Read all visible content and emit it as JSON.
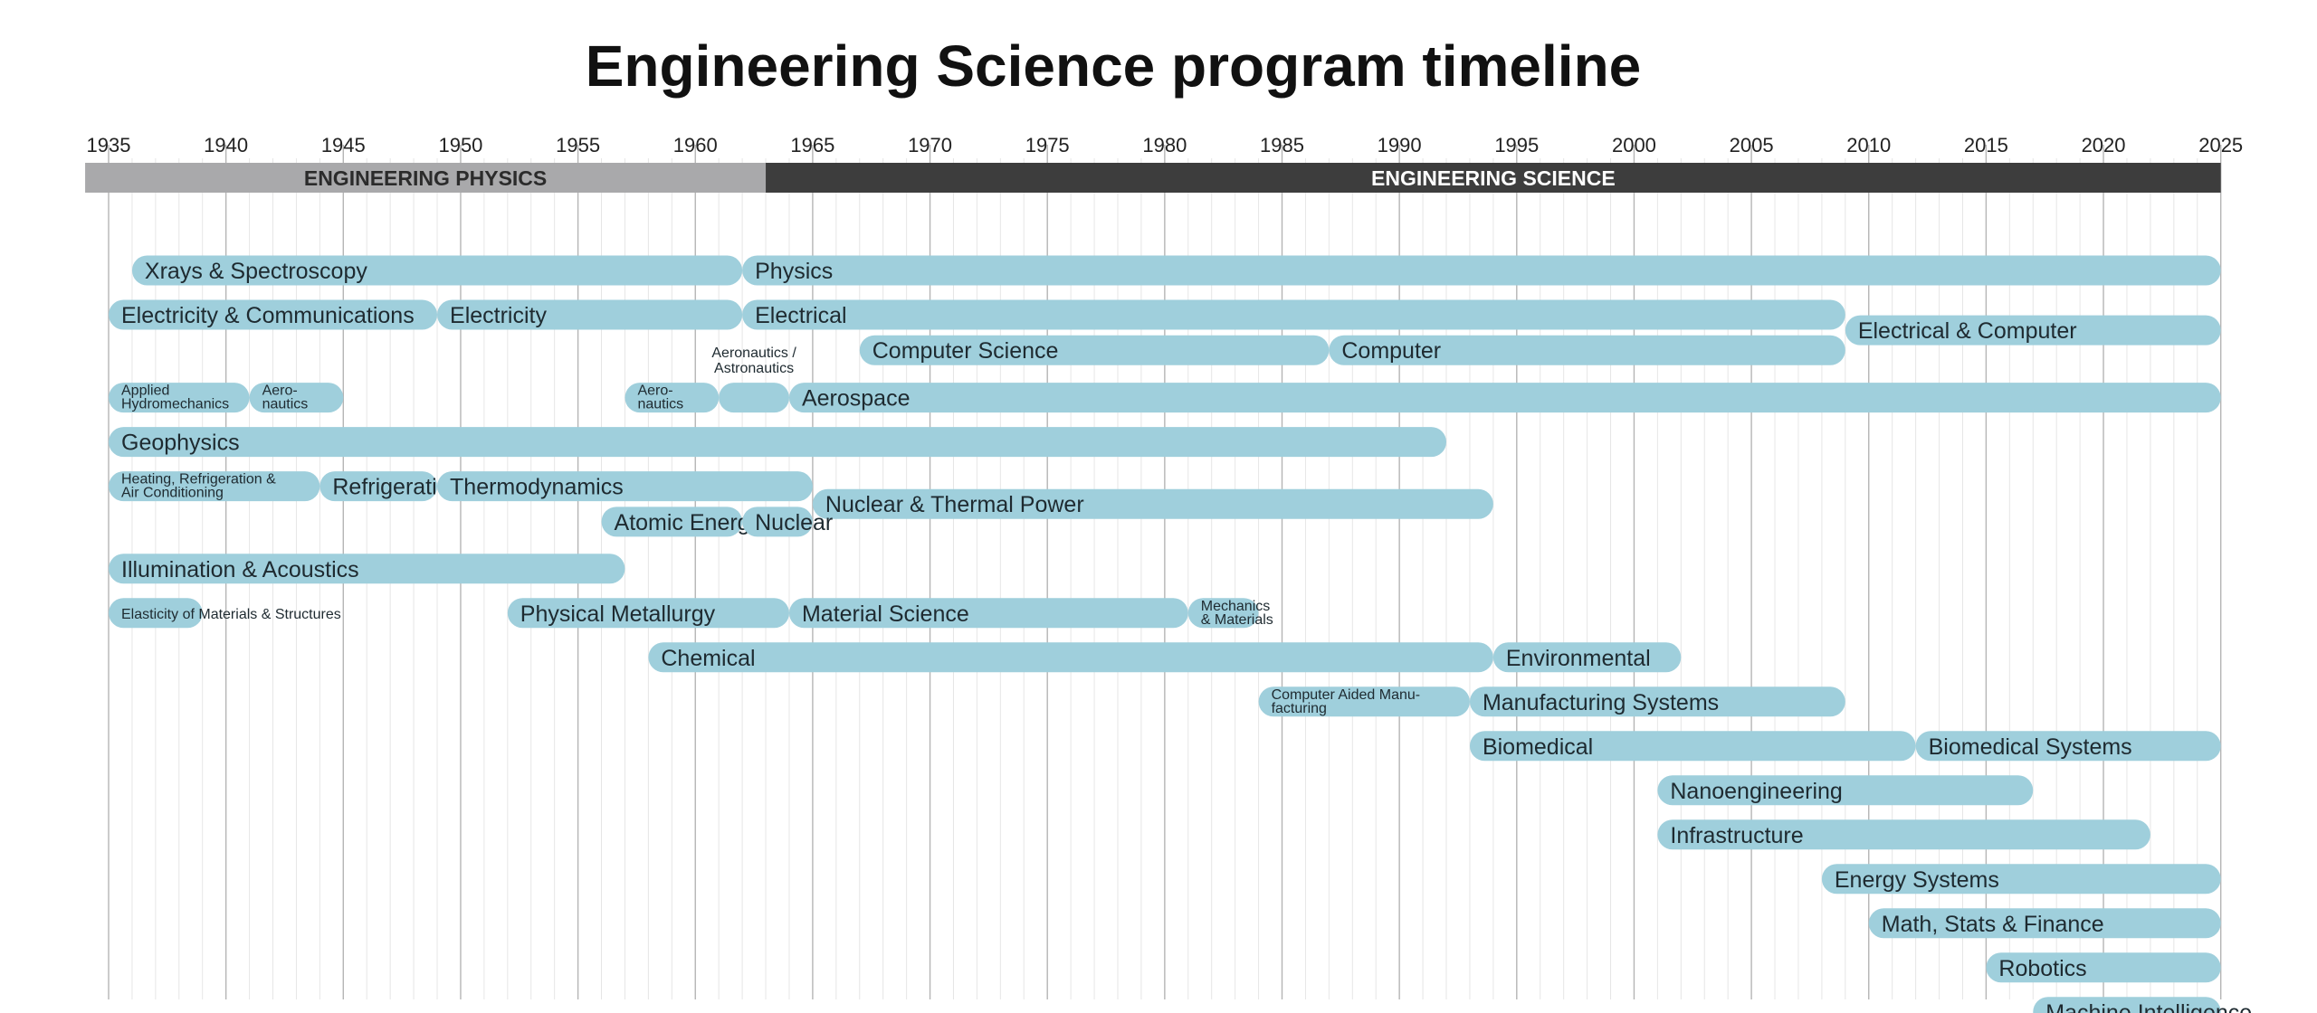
{
  "title": "Engineering Science program timeline",
  "colors": {
    "bar": "#9fcfdc",
    "era_physics": "#a9a9ab",
    "era_physics_text": "#2b2b2b",
    "era_science": "#3d3d3d",
    "era_science_text": "#ffffff",
    "grid_major": "#b5b5b5",
    "grid_minor": "#e6e6e6"
  },
  "chart_data": {
    "type": "timeline",
    "title": "Engineering Science program timeline",
    "x_range": [
      1935,
      2025
    ],
    "x_ticks": [
      1935,
      1940,
      1945,
      1950,
      1955,
      1960,
      1965,
      1970,
      1975,
      1980,
      1985,
      1990,
      1995,
      2000,
      2005,
      2010,
      2015,
      2020,
      2025
    ],
    "x_tick_labels": [
      "1935",
      "1940",
      "1945",
      "1950",
      "1955",
      "1960",
      "1965",
      "1970",
      "1975",
      "1980",
      "1985",
      "1990",
      "1995",
      "2000",
      "2005",
      "2010",
      "2015",
      "2020",
      "2025"
    ],
    "eras": [
      {
        "name": "ENGINEERING PHYSICS",
        "start": 1934,
        "end": 1963
      },
      {
        "name": "ENGINEERING SCIENCE",
        "start": 1963,
        "end": 2025
      }
    ],
    "programs": [
      {
        "id": "xrays",
        "label": [
          "Xrays & Spectroscopy"
        ],
        "start": 1936,
        "end": 1962,
        "row": 1
      },
      {
        "id": "physics",
        "label": [
          "Physics"
        ],
        "start": 1962,
        "end": 2025,
        "row": 1
      },
      {
        "id": "elec-comm",
        "label": [
          "Electricity & Communications"
        ],
        "start": 1935,
        "end": 1949,
        "row": 2
      },
      {
        "id": "electricity",
        "label": [
          "Electricity"
        ],
        "start": 1949,
        "end": 1962,
        "row": 2
      },
      {
        "id": "electrical",
        "label": [
          "Electrical"
        ],
        "start": 1962,
        "end": 2009,
        "row": 2
      },
      {
        "id": "elec-computer",
        "label": [
          "Electrical & Computer"
        ],
        "start": 2009,
        "end": 2025,
        "row": 2.35
      },
      {
        "id": "computer-science",
        "label": [
          "Computer Science"
        ],
        "start": 1967,
        "end": 1987,
        "row": 2.8
      },
      {
        "id": "computer",
        "label": [
          "Computer"
        ],
        "start": 1987,
        "end": 2009,
        "row": 2.8
      },
      {
        "id": "applied-hydro",
        "label": [
          "Applied",
          "Hydromechanics"
        ],
        "start": 1935,
        "end": 1941,
        "row": 3.87
      },
      {
        "id": "aeronautics-1",
        "label": [
          "Aero-",
          "nautics"
        ],
        "start": 1941,
        "end": 1945,
        "row": 3.87
      },
      {
        "id": "aeronautics-2",
        "label": [
          "Aero-",
          "nautics"
        ],
        "start": 1957,
        "end": 1961,
        "row": 3.87
      },
      {
        "id": "aero-astro",
        "label": [
          "Aeronautics /",
          "Astronautics"
        ],
        "start": 1961,
        "end": 1964,
        "row": 3.87,
        "label_position": "above"
      },
      {
        "id": "aerospace",
        "label": [
          "Aerospace"
        ],
        "start": 1964,
        "end": 2025,
        "row": 3.87
      },
      {
        "id": "geophysics",
        "label": [
          "Geophysics"
        ],
        "start": 1935,
        "end": 1992,
        "row": 4.87
      },
      {
        "id": "heating",
        "label": [
          "Heating, Refrigeration &",
          "Air Conditioning"
        ],
        "start": 1935,
        "end": 1944,
        "row": 5.87
      },
      {
        "id": "refrigeration",
        "label": [
          "Refrigeration"
        ],
        "start": 1944,
        "end": 1949,
        "row": 5.87
      },
      {
        "id": "thermodynamics",
        "label": [
          "Thermodynamics"
        ],
        "start": 1949,
        "end": 1965,
        "row": 5.87
      },
      {
        "id": "nuclear-thermal",
        "label": [
          "Nuclear & Thermal Power"
        ],
        "start": 1965,
        "end": 1994,
        "row": 6.27
      },
      {
        "id": "atomic-energy",
        "label": [
          "Atomic Energy"
        ],
        "start": 1956,
        "end": 1962,
        "row": 6.67
      },
      {
        "id": "nuclear",
        "label": [
          "Nuclear"
        ],
        "start": 1962,
        "end": 1965,
        "row": 6.67
      },
      {
        "id": "illumination",
        "label": [
          "Illumination & Acoustics"
        ],
        "start": 1935,
        "end": 1957,
        "row": 7.73
      },
      {
        "id": "elasticity",
        "label": [
          "Elasticity of Materials & Structures"
        ],
        "start": 1935,
        "end": 1939,
        "row": 8.73,
        "label_position": "overflow"
      },
      {
        "id": "phys-metallurgy",
        "label": [
          "Physical Metallurgy"
        ],
        "start": 1952,
        "end": 1964,
        "row": 8.73
      },
      {
        "id": "material-science",
        "label": [
          "Material Science"
        ],
        "start": 1964,
        "end": 1981,
        "row": 8.73
      },
      {
        "id": "mech-materials",
        "label": [
          "Mechanics",
          "& Materials"
        ],
        "start": 1981,
        "end": 1984,
        "row": 8.73
      },
      {
        "id": "chemical",
        "label": [
          "Chemical"
        ],
        "start": 1958,
        "end": 1994,
        "row": 9.73
      },
      {
        "id": "environmental",
        "label": [
          "Environmental"
        ],
        "start": 1994,
        "end": 2002,
        "row": 9.73
      },
      {
        "id": "cad-manufacturing",
        "label": [
          "Computer Aided Manu-",
          "facturing"
        ],
        "start": 1984,
        "end": 1993,
        "row": 10.73
      },
      {
        "id": "manufacturing-systems",
        "label": [
          "Manufacturing Systems"
        ],
        "start": 1993,
        "end": 2009,
        "row": 10.73
      },
      {
        "id": "biomedical",
        "label": [
          "Biomedical"
        ],
        "start": 1993,
        "end": 2012,
        "row": 11.73
      },
      {
        "id": "biomedical-systems",
        "label": [
          "Biomedical Systems"
        ],
        "start": 2012,
        "end": 2025,
        "row": 11.73
      },
      {
        "id": "nanoengineering",
        "label": [
          "Nanoengineering"
        ],
        "start": 2001,
        "end": 2017,
        "row": 12.73
      },
      {
        "id": "infrastructure",
        "label": [
          "Infrastructure"
        ],
        "start": 2001,
        "end": 2022,
        "row": 13.73
      },
      {
        "id": "energy-systems",
        "label": [
          "Energy Systems"
        ],
        "start": 2008,
        "end": 2025,
        "row": 14.73
      },
      {
        "id": "math-stats-finance",
        "label": [
          "Math, Stats & Finance"
        ],
        "start": 2010,
        "end": 2025,
        "row": 15.73
      },
      {
        "id": "robotics",
        "label": [
          "Robotics"
        ],
        "start": 2015,
        "end": 2025,
        "row": 16.73
      },
      {
        "id": "machine-intelligence",
        "label": [
          "Machine Intelligence"
        ],
        "start": 2017,
        "end": 2025,
        "row": 17.73
      }
    ]
  }
}
